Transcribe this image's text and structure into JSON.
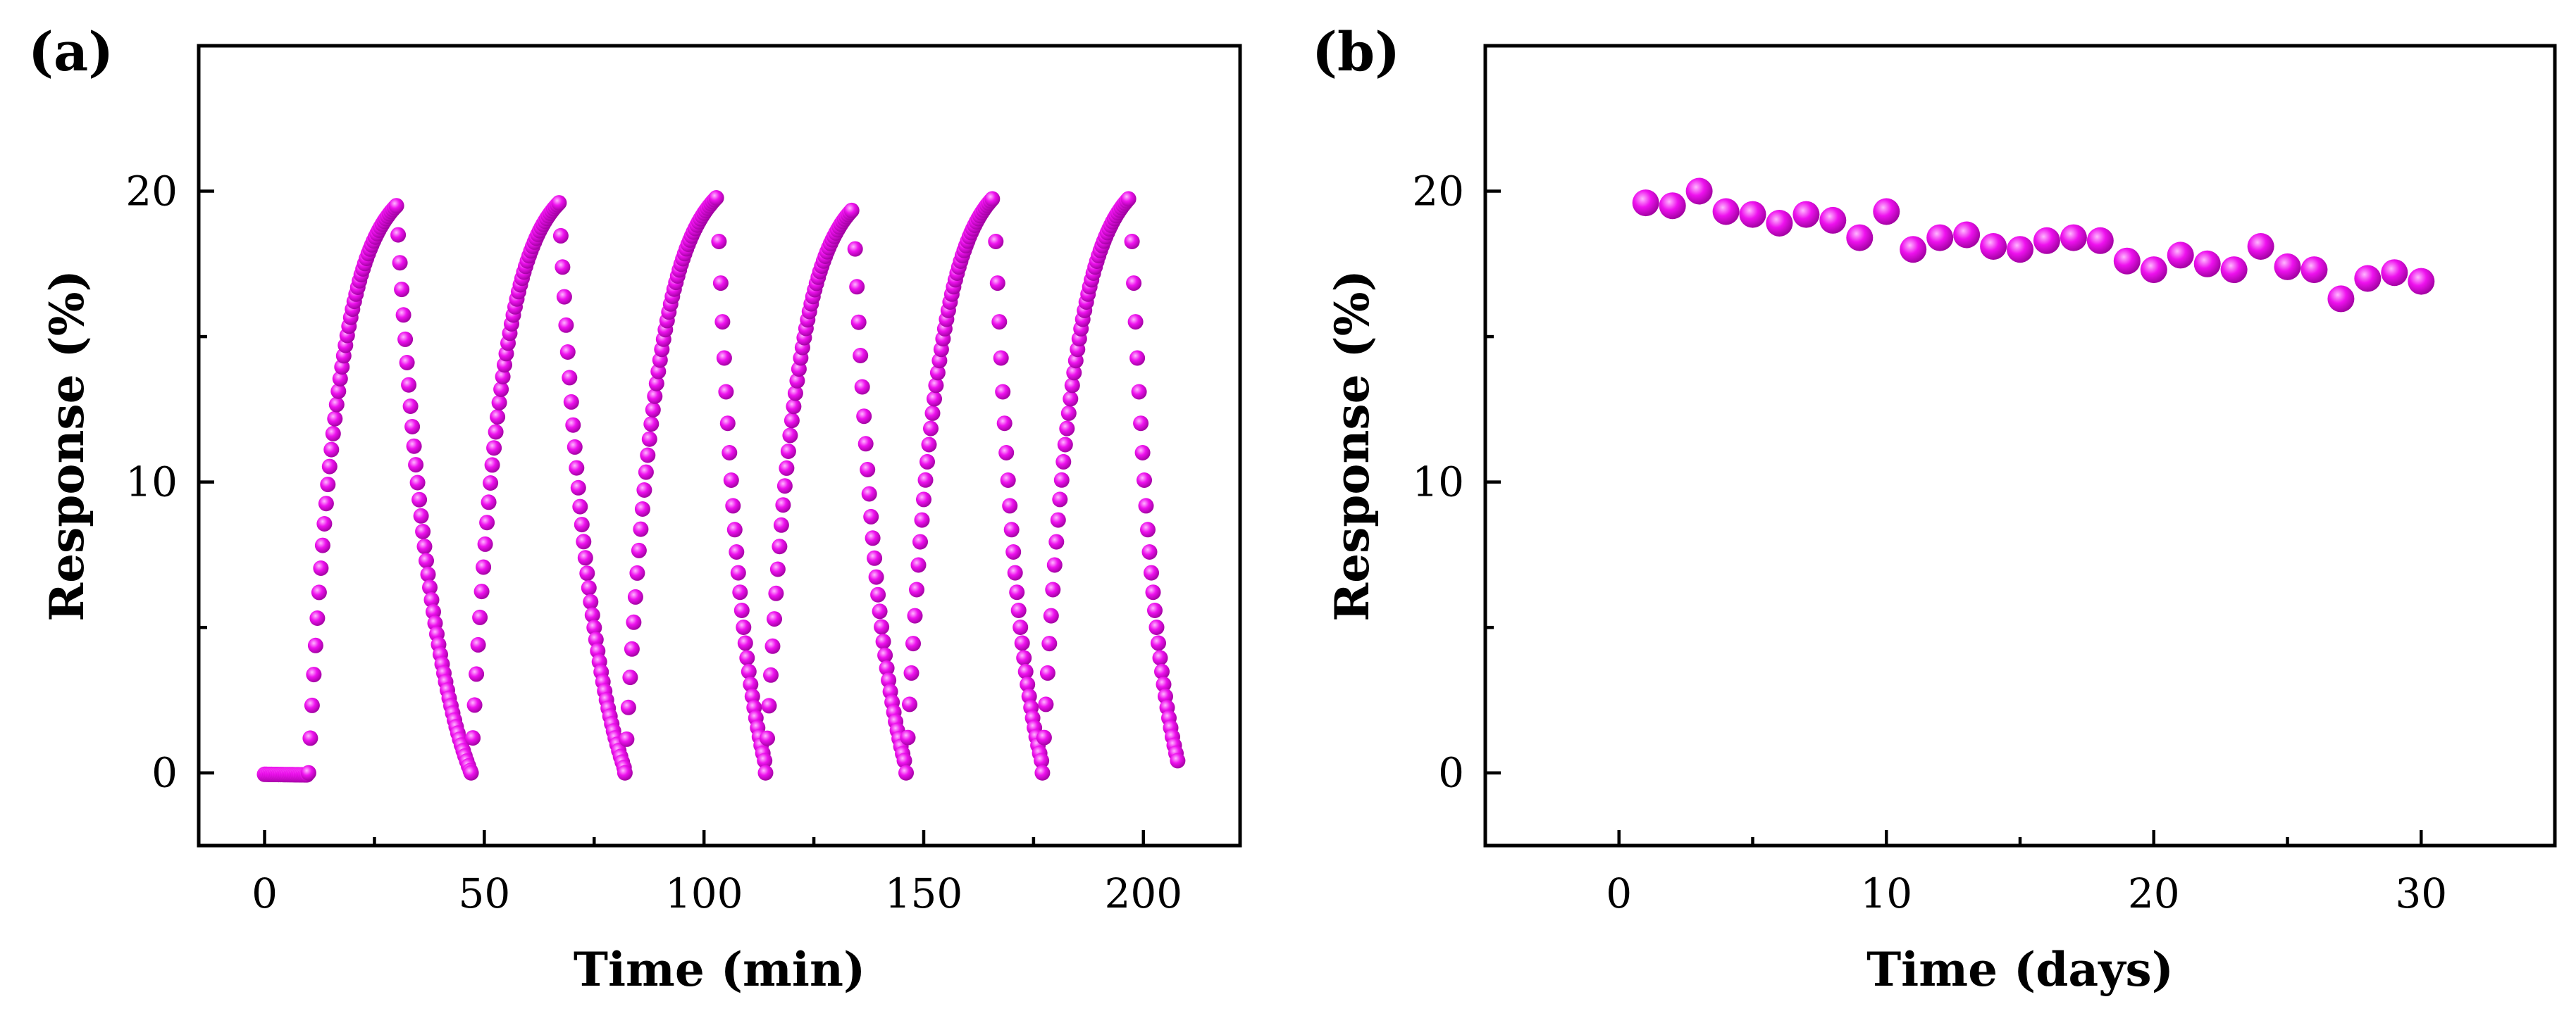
{
  "colors": {
    "marker": "#ee11ee",
    "marker_highlight": "#ffb8ff",
    "marker_shadow": "#9a009a"
  },
  "chart_data": [
    {
      "panel": "(a)",
      "type": "scatter",
      "title": "",
      "xlabel": "Time (min)",
      "ylabel": "Response (%)",
      "xlim": [
        -15,
        222
      ],
      "ylim": [
        -2.5,
        25
      ],
      "xticks": [
        0,
        50,
        100,
        150,
        200
      ],
      "yticks": [
        0,
        10,
        20
      ],
      "grid": false,
      "series": [
        {
          "name": "response",
          "marker_size": "small",
          "cycles": [
            {
              "baseline_start": 0,
              "baseline_end": 10,
              "on": 10,
              "off": 30,
              "peak": 19.5,
              "end": 47,
              "final": 0
            },
            {
              "on": 47,
              "off": 67,
              "peak": 19.6,
              "end": 82,
              "final": 0.1
            },
            {
              "on": 82,
              "off": 103,
              "peak": 19.8,
              "end": 114,
              "final": 0.3
            },
            {
              "on": 114,
              "off": 134,
              "peak": 19.4,
              "end": 146,
              "final": 0.2
            },
            {
              "on": 146,
              "off": 166,
              "peak": 19.8,
              "end": 177,
              "final": 0.3
            },
            {
              "on": 177,
              "off": 197,
              "peak": 19.8,
              "end": 208,
              "final": 0.3
            }
          ]
        }
      ]
    },
    {
      "panel": "(b)",
      "type": "scatter",
      "title": "",
      "xlabel": "Time (days)",
      "ylabel": "Response (%)",
      "xlim": [
        -5,
        35
      ],
      "ylim": [
        -2.5,
        25
      ],
      "xticks": [
        0,
        10,
        20,
        30
      ],
      "yticks": [
        0,
        10,
        20
      ],
      "grid": false,
      "series": [
        {
          "name": "response",
          "marker_size": "large",
          "x": [
            1,
            2,
            3,
            4,
            5,
            6,
            7,
            8,
            9,
            10,
            11,
            12,
            13,
            14,
            15,
            16,
            17,
            18,
            19,
            20,
            21,
            22,
            23,
            24,
            25,
            26,
            27,
            28,
            29,
            30
          ],
          "y": [
            19.6,
            19.5,
            20.0,
            19.3,
            19.2,
            18.9,
            19.2,
            19.0,
            18.4,
            19.3,
            18.0,
            18.4,
            18.5,
            18.1,
            18.0,
            18.3,
            18.4,
            18.3,
            17.6,
            17.3,
            17.8,
            17.5,
            17.3,
            18.1,
            17.4,
            17.3,
            16.3,
            17.0,
            17.2,
            16.9
          ]
        }
      ]
    }
  ]
}
